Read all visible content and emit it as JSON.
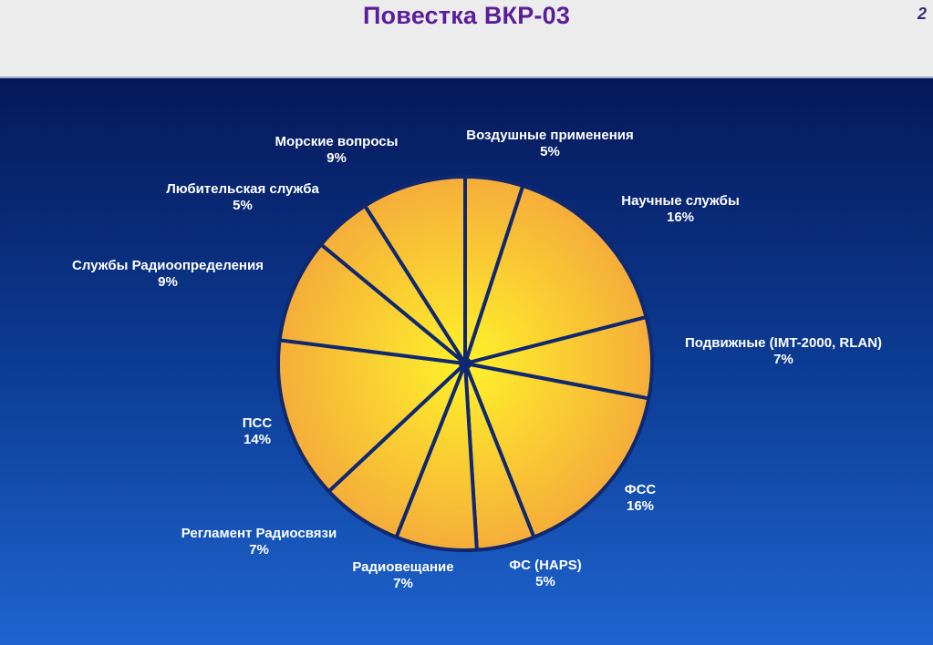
{
  "header": {
    "title": "Повестка ВКР-03",
    "page_number": "2"
  },
  "colors": {
    "slice_fill_center": "#fff22a",
    "slice_fill_edge": "#f5ad3a",
    "separator": "#10286f",
    "label_text": "#ffffff",
    "title_text": "#5a1e99"
  },
  "chart_data": {
    "type": "pie",
    "title": "",
    "start_angle_deg": 0,
    "direction": "clockwise",
    "legend": "none",
    "slices": [
      {
        "label": "Воздушные применения",
        "value": 5,
        "value_label": "5%"
      },
      {
        "label": "Научные службы",
        "value": 16,
        "value_label": "16%"
      },
      {
        "label": "Подвижные (IMT-2000, RLAN)",
        "value": 7,
        "value_label": "7%"
      },
      {
        "label": "ФСС",
        "value": 16,
        "value_label": "16%"
      },
      {
        "label": "ФС (HAPS)",
        "value": 5,
        "value_label": "5%"
      },
      {
        "label": "Радиовещание",
        "value": 7,
        "value_label": "7%"
      },
      {
        "label": "Регламент Радиосвязи",
        "value": 7,
        "value_label": "7%"
      },
      {
        "label": "ПСС",
        "value": 14,
        "value_label": "14%"
      },
      {
        "label": "Службы Радиоопределения",
        "value": 9,
        "value_label": "9%"
      },
      {
        "label": "Любительская служба",
        "value": 5,
        "value_label": "5%"
      },
      {
        "label": "Морские вопросы",
        "value": 9,
        "value_label": "9%"
      }
    ]
  }
}
